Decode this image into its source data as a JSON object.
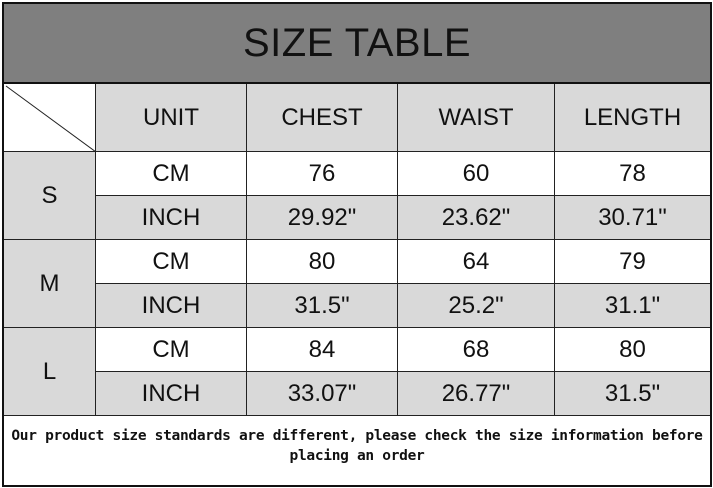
{
  "title": "SIZE TABLE",
  "headers": [
    "UNIT",
    "CHEST",
    "WAIST",
    "LENGTH"
  ],
  "sizes": [
    {
      "size": "S",
      "rows": [
        {
          "unit": "CM",
          "chest": "76",
          "waist": "60",
          "length": "78"
        },
        {
          "unit": "INCH",
          "chest": "29.92\"",
          "waist": "23.62\"",
          "length": "30.71\""
        }
      ]
    },
    {
      "size": "M",
      "rows": [
        {
          "unit": "CM",
          "chest": "80",
          "waist": "64",
          "length": "79"
        },
        {
          "unit": "INCH",
          "chest": "31.5\"",
          "waist": "25.2\"",
          "length": "31.1\""
        }
      ]
    },
    {
      "size": "L",
      "rows": [
        {
          "unit": "CM",
          "chest": "84",
          "waist": "68",
          "length": "80"
        },
        {
          "unit": "INCH",
          "chest": "33.07\"",
          "waist": "26.77\"",
          "length": "31.5\""
        }
      ]
    }
  ],
  "note": "Our product size standards are different, please check the size information before placing an order",
  "colors": {
    "title_bg": "#7f7f7f",
    "header_bg": "#d9d9d9",
    "inch_row_bg": "#d9d9d9",
    "cm_row_bg": "#ffffff"
  }
}
